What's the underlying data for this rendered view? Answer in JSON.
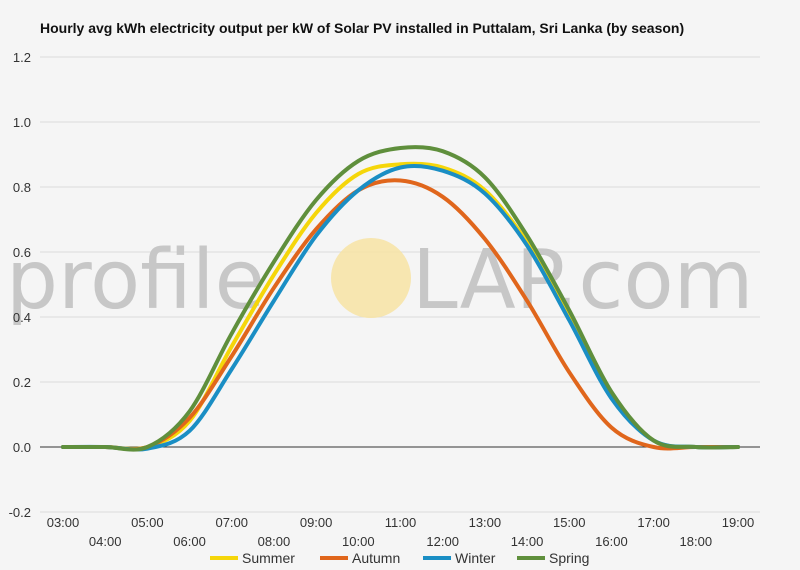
{
  "watermark": {
    "left": "profile",
    "right": "LAP.com",
    "letter_color": "#c7c7c7",
    "sun_color": "#f7e3a3"
  },
  "chart_data": {
    "type": "line",
    "title": "Hourly avg kWh electricity output per kW of Solar PV installed in Puttalam, Sri Lanka (by season)",
    "xlabel": "",
    "ylabel": "",
    "ylim": [
      -0.2,
      1.2
    ],
    "y_ticks": [
      "1.2",
      "1.0",
      "0.8",
      "0.6",
      "0.4",
      "0.2",
      "0.0",
      "-0.2"
    ],
    "y_tick_values": [
      1.2,
      1.0,
      0.8,
      0.6,
      0.4,
      0.2,
      0.0,
      -0.2
    ],
    "categories": [
      "03:00",
      "04:00",
      "05:00",
      "06:00",
      "07:00",
      "08:00",
      "09:00",
      "10:00",
      "11:00",
      "12:00",
      "13:00",
      "14:00",
      "15:00",
      "16:00",
      "17:00",
      "18:00",
      "19:00"
    ],
    "grid": true,
    "legend": "bottom",
    "series": [
      {
        "name": "Summer",
        "color": "#f5d60a",
        "values": [
          0,
          0,
          0,
          0.08,
          0.31,
          0.53,
          0.72,
          0.84,
          0.87,
          0.86,
          0.79,
          0.63,
          0.41,
          0.16,
          0.02,
          0,
          0
        ]
      },
      {
        "name": "Autumn",
        "color": "#e0661c",
        "values": [
          0,
          0,
          0,
          0.09,
          0.28,
          0.49,
          0.67,
          0.79,
          0.82,
          0.77,
          0.64,
          0.45,
          0.23,
          0.06,
          0,
          0,
          0
        ]
      },
      {
        "name": "Winter",
        "color": "#1a8ec4",
        "values": [
          0,
          0,
          -0.005,
          0.05,
          0.24,
          0.45,
          0.65,
          0.79,
          0.86,
          0.85,
          0.78,
          0.62,
          0.39,
          0.15,
          0.02,
          0,
          0
        ]
      },
      {
        "name": "Spring",
        "color": "#5f8f3c",
        "values": [
          0,
          0,
          0,
          0.11,
          0.35,
          0.57,
          0.76,
          0.88,
          0.92,
          0.91,
          0.83,
          0.65,
          0.42,
          0.17,
          0.02,
          0,
          0
        ]
      }
    ]
  }
}
